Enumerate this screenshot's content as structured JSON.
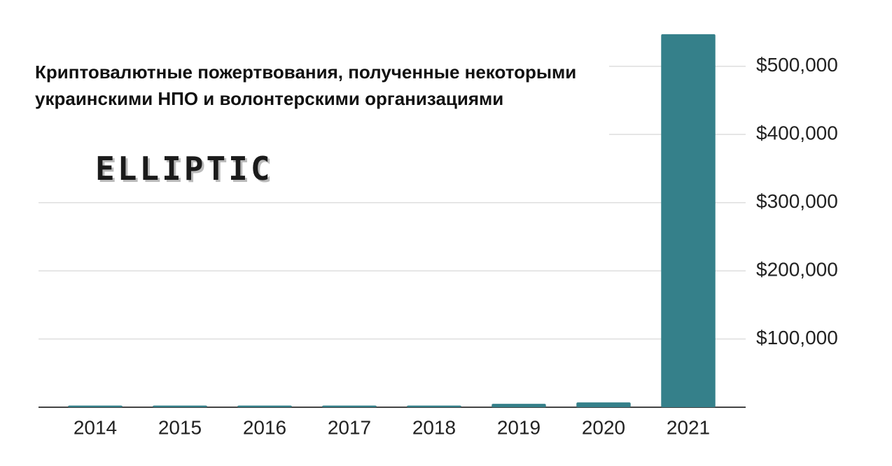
{
  "chart_data": {
    "type": "bar",
    "title": "Криптовалютные пожертвования, полученные некоторыми украинскими НПО и волонтерскими организациями",
    "logo": "ELLIPTIC",
    "categories": [
      "2014",
      "2015",
      "2016",
      "2017",
      "2018",
      "2019",
      "2020",
      "2021"
    ],
    "values": [
      2500,
      2500,
      2500,
      2500,
      2500,
      5000,
      7000,
      547000
    ],
    "color": "#35808a",
    "ylim": [
      0,
      550000
    ],
    "yticks": [
      {
        "value": 100000,
        "label": "$100,000"
      },
      {
        "value": 200000,
        "label": "$200,000"
      },
      {
        "value": 300000,
        "label": "$300,000"
      },
      {
        "value": 400000,
        "label": "$400,000"
      },
      {
        "value": 500000,
        "label": "$500,000"
      }
    ],
    "grid": true
  }
}
